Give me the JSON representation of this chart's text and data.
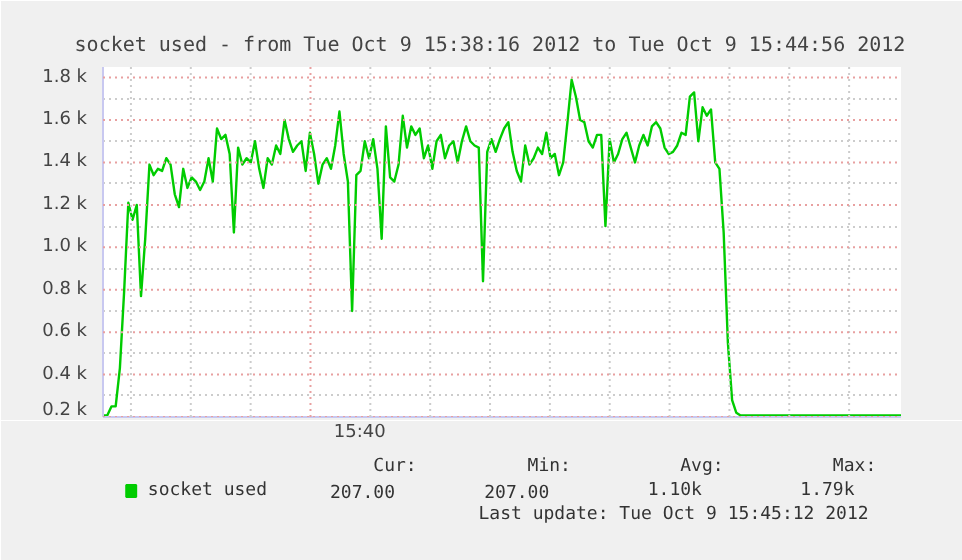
{
  "chart_data": {
    "type": "line",
    "title": "socket used - from Tue Oct  9 15:38:16 2012 to Tue Oct  9 15:44:56 2012",
    "categories": [
      null,
      null,
      null,
      null,
      null,
      null,
      null,
      null,
      null,
      null,
      null,
      null,
      null,
      null,
      null,
      null,
      null,
      null,
      null,
      null,
      null,
      null,
      null,
      null,
      null,
      null,
      null,
      null,
      null,
      null,
      null,
      null,
      null,
      null,
      null,
      null,
      null,
      null,
      null,
      null,
      null,
      null,
      null,
      null,
      null,
      null,
      null,
      null,
      null,
      null,
      null,
      null,
      null,
      null,
      null,
      null,
      null,
      null,
      null,
      null,
      null,
      null,
      null,
      null,
      null,
      null,
      null,
      null,
      null,
      null,
      null,
      null,
      null,
      null,
      null,
      null,
      null,
      null,
      null,
      null,
      null,
      null,
      null,
      null,
      null,
      null,
      null,
      null,
      null,
      null,
      null,
      null,
      null,
      null,
      null,
      null,
      null,
      null,
      null,
      null,
      null,
      null,
      null,
      null,
      null,
      null,
      null,
      null,
      null,
      null,
      null,
      null,
      null,
      null,
      null,
      null,
      null,
      null,
      null,
      null,
      null,
      null,
      null,
      null,
      null,
      null,
      null,
      null,
      null,
      null,
      null,
      null,
      null,
      null,
      null,
      null,
      null,
      null,
      null,
      null,
      null,
      null,
      null,
      null,
      null,
      null,
      null,
      null,
      null,
      null,
      null,
      null,
      null,
      null,
      null,
      null,
      null,
      null,
      null,
      null,
      null,
      null,
      null,
      null,
      null,
      null,
      null,
      null,
      null,
      null,
      null,
      null,
      null,
      null,
      null,
      null,
      null,
      null,
      null,
      null,
      null,
      null,
      null,
      null,
      null,
      null,
      null,
      null,
      null,
      null
    ],
    "series": [
      {
        "name": "socket used",
        "color": "#00cc00",
        "values": [
          207,
          207,
          250,
          250,
          430,
          790,
          1210,
          1130,
          1200,
          770,
          1040,
          1390,
          1340,
          1370,
          1360,
          1420,
          1390,
          1250,
          1190,
          1370,
          1280,
          1330,
          1310,
          1270,
          1310,
          1420,
          1310,
          1560,
          1510,
          1530,
          1440,
          1070,
          1470,
          1390,
          1420,
          1400,
          1500,
          1370,
          1280,
          1420,
          1390,
          1480,
          1440,
          1600,
          1510,
          1450,
          1480,
          1500,
          1360,
          1540,
          1440,
          1300,
          1390,
          1420,
          1370,
          1480,
          1640,
          1440,
          1310,
          700,
          1340,
          1360,
          1500,
          1420,
          1510,
          1370,
          1040,
          1570,
          1330,
          1310,
          1390,
          1620,
          1470,
          1570,
          1530,
          1560,
          1420,
          1480,
          1370,
          1500,
          1530,
          1420,
          1480,
          1500,
          1400,
          1500,
          1570,
          1500,
          1480,
          1470,
          840,
          1450,
          1510,
          1450,
          1510,
          1560,
          1590,
          1450,
          1360,
          1310,
          1480,
          1390,
          1420,
          1470,
          1440,
          1540,
          1420,
          1440,
          1340,
          1400,
          1590,
          1790,
          1710,
          1600,
          1590,
          1500,
          1470,
          1530,
          1530,
          1100,
          1510,
          1400,
          1440,
          1510,
          1540,
          1470,
          1400,
          1480,
          1530,
          1480,
          1570,
          1590,
          1560,
          1470,
          1440,
          1450,
          1480,
          1540,
          1530,
          1710,
          1730,
          1500,
          1660,
          1620,
          1650,
          1400,
          1370,
          1070,
          550,
          280,
          220,
          207,
          207,
          207,
          207,
          207,
          207,
          207,
          207,
          207,
          207,
          207,
          207,
          207,
          207,
          207,
          207,
          207,
          207,
          207,
          207,
          207,
          207,
          207,
          207,
          207,
          207,
          207,
          207,
          207,
          207,
          207,
          207,
          207,
          207,
          207,
          207,
          207,
          207,
          207
        ]
      }
    ],
    "ylim": [
      200,
      1850
    ],
    "yticks": [
      {
        "value": 200,
        "label": "0.2 k"
      },
      {
        "value": 300,
        "label": null
      },
      {
        "value": 400,
        "label": "0.4 k"
      },
      {
        "value": 500,
        "label": null
      },
      {
        "value": 600,
        "label": "0.6 k"
      },
      {
        "value": 700,
        "label": null
      },
      {
        "value": 800,
        "label": "0.8 k"
      },
      {
        "value": 900,
        "label": null
      },
      {
        "value": 1000,
        "label": "1.0 k"
      },
      {
        "value": 1100,
        "label": null
      },
      {
        "value": 1200,
        "label": "1.2 k"
      },
      {
        "value": 1300,
        "label": null
      },
      {
        "value": 1400,
        "label": "1.4 k"
      },
      {
        "value": 1500,
        "label": null
      },
      {
        "value": 1600,
        "label": "1.6 k"
      },
      {
        "value": 1700,
        "label": null
      },
      {
        "value": 1800,
        "label": "1.8 k"
      }
    ],
    "grid": true,
    "legend": "bottom left",
    "marker": "none",
    "line_style": "solid",
    "annotations": [
      "15:40",
      "Cur:",
      "Min:",
      "Avg:",
      "Max:",
      "207.00",
      "207.00",
      "1.10k",
      "1.79k",
      "Last update: Tue Oct  9 15:45:12 2012"
    ]
  }
}
